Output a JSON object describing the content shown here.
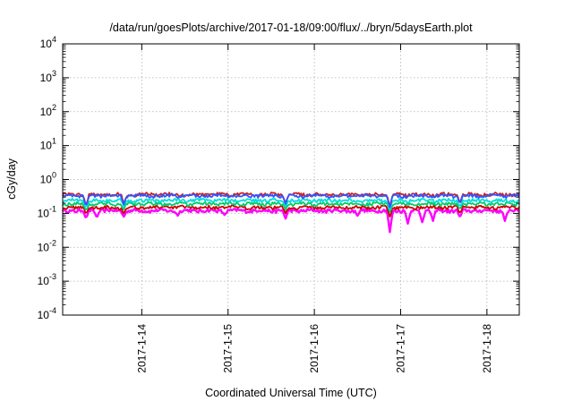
{
  "chart_data": {
    "type": "line",
    "title": "/data/run/goesPlots/archive/2017-01-18/09:00/flux/../bryn/5daysEarth.plot",
    "xlabel": "Coordinated Universal Time (UTC)",
    "ylabel": "cGy/day",
    "yscale": "log",
    "grid": true,
    "xlim": [
      "2017-01-13T02:00",
      "2017-01-18T09:00"
    ],
    "ylim": [
      0.0001,
      10000
    ],
    "y_ticks": [
      {
        "base": "10",
        "exp": "-4"
      },
      {
        "base": "10",
        "exp": "-3"
      },
      {
        "base": "10",
        "exp": "-2"
      },
      {
        "base": "10",
        "exp": "-1"
      },
      {
        "base": "10",
        "exp": "0"
      },
      {
        "base": "10",
        "exp": "1"
      },
      {
        "base": "10",
        "exp": "2"
      },
      {
        "base": "10",
        "exp": "3"
      },
      {
        "base": "10",
        "exp": "4"
      }
    ],
    "x_ticks": [
      "2017-1-14",
      "2017-1-15",
      "2017-1-16",
      "2017-1-17",
      "2017-1-18"
    ],
    "series": [
      {
        "color": "#ff00ff",
        "base": 0.12,
        "dips": [
          {
            "x": "2017-01-13T08:30",
            "y": 0.07
          },
          {
            "x": "2017-01-13T11:30",
            "y": 0.075
          },
          {
            "x": "2017-01-13T19:00",
            "y": 0.08
          },
          {
            "x": "2017-01-14T10:00",
            "y": 0.085
          },
          {
            "x": "2017-01-14T23:00",
            "y": 0.09
          },
          {
            "x": "2017-01-15T16:00",
            "y": 0.07
          },
          {
            "x": "2017-01-16T12:00",
            "y": 0.085
          },
          {
            "x": "2017-01-16T21:00",
            "y": 0.028
          },
          {
            "x": "2017-01-17T02:00",
            "y": 0.05
          },
          {
            "x": "2017-01-17T06:00",
            "y": 0.055
          },
          {
            "x": "2017-01-17T09:00",
            "y": 0.06
          },
          {
            "x": "2017-01-17T16:30",
            "y": 0.075
          },
          {
            "x": "2017-01-18T05:00",
            "y": 0.06
          }
        ]
      },
      {
        "color": "#cc0000",
        "base": 0.15,
        "dips": [
          {
            "x": "2017-01-13T08:30",
            "y": 0.095
          },
          {
            "x": "2017-01-13T19:00",
            "y": 0.1
          },
          {
            "x": "2017-01-15T16:00",
            "y": 0.1
          },
          {
            "x": "2017-01-16T21:00",
            "y": 0.08
          },
          {
            "x": "2017-01-17T16:30",
            "y": 0.1
          }
        ]
      },
      {
        "color": "#00cc66",
        "base": 0.19,
        "dips": [
          {
            "x": "2017-01-13T08:30",
            "y": 0.12
          },
          {
            "x": "2017-01-13T19:00",
            "y": 0.13
          },
          {
            "x": "2017-01-15T16:00",
            "y": 0.13
          },
          {
            "x": "2017-01-16T21:00",
            "y": 0.11
          },
          {
            "x": "2017-01-17T16:30",
            "y": 0.13
          }
        ]
      },
      {
        "color": "#00dddd",
        "base": 0.24,
        "dips": [
          {
            "x": "2017-01-13T08:30",
            "y": 0.15
          },
          {
            "x": "2017-01-13T19:00",
            "y": 0.16
          },
          {
            "x": "2017-01-15T16:00",
            "y": 0.16
          },
          {
            "x": "2017-01-16T21:00",
            "y": 0.13
          },
          {
            "x": "2017-01-17T16:30",
            "y": 0.16
          }
        ]
      },
      {
        "color": "#cc2222",
        "base": 0.36,
        "dips": [
          {
            "x": "2017-01-13T08:30",
            "y": 0.17
          },
          {
            "x": "2017-01-13T19:00",
            "y": 0.19
          },
          {
            "x": "2017-01-15T16:00",
            "y": 0.2
          },
          {
            "x": "2017-01-16T21:00",
            "y": 0.16
          },
          {
            "x": "2017-01-17T16:30",
            "y": 0.2
          }
        ]
      },
      {
        "color": "#3355ff",
        "base": 0.33,
        "dips": [
          {
            "x": "2017-01-13T08:30",
            "y": 0.16
          },
          {
            "x": "2017-01-13T19:00",
            "y": 0.18
          },
          {
            "x": "2017-01-15T16:00",
            "y": 0.19
          },
          {
            "x": "2017-01-16T21:00",
            "y": 0.15
          },
          {
            "x": "2017-01-17T16:30",
            "y": 0.19
          }
        ]
      }
    ]
  }
}
